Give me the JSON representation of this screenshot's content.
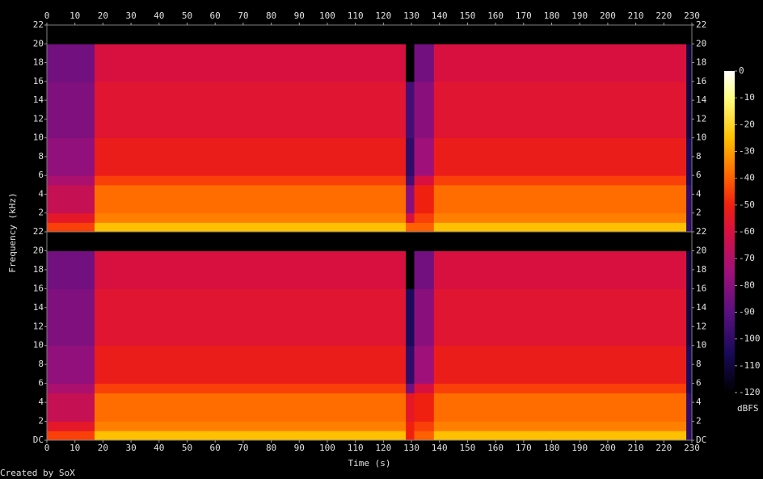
{
  "chart_data": {
    "type": "spectrogram",
    "x_label": "Time (s)",
    "y_label": "Frequency (kHz)",
    "footer": "Created by SoX",
    "xlim": [
      0,
      230
    ],
    "xticks": [
      0,
      10,
      20,
      30,
      40,
      50,
      60,
      70,
      80,
      90,
      100,
      110,
      120,
      130,
      140,
      150,
      160,
      170,
      180,
      190,
      200,
      210,
      220,
      230
    ],
    "time_bins": [
      0,
      17,
      128,
      131,
      138,
      228,
      230
    ],
    "freq_bins": [
      0,
      1,
      2,
      5,
      6,
      10,
      16,
      20,
      22
    ],
    "zlim": [
      -120,
      0
    ],
    "zticks": [
      0,
      -10,
      -20,
      -30,
      -40,
      -50,
      -60,
      -70,
      -80,
      -90,
      -100,
      -110,
      -120
    ],
    "z_label": "dBFS",
    "colorscale": [
      {
        "value": -120,
        "color": "#000000"
      },
      {
        "value": -105,
        "color": "#1a0a5a"
      },
      {
        "value": -90,
        "color": "#5a1080"
      },
      {
        "value": -75,
        "color": "#a0107a"
      },
      {
        "value": -60,
        "color": "#d81040"
      },
      {
        "value": -50,
        "color": "#f02010"
      },
      {
        "value": -40,
        "color": "#ff6000"
      },
      {
        "value": -25,
        "color": "#ffc000"
      },
      {
        "value": -10,
        "color": "#ffff80"
      },
      {
        "value": 0,
        "color": "#ffffff"
      }
    ],
    "channels": [
      {
        "ylim": [
          0,
          22
        ],
        "yticks": [
          2,
          4,
          6,
          8,
          10,
          12,
          14,
          16,
          18,
          20,
          22
        ],
        "values": [
          [
            -45,
            -25,
            -40,
            -40,
            -25,
            -100
          ],
          [
            -55,
            -35,
            -60,
            -45,
            -35,
            -100
          ],
          [
            -65,
            -38,
            -80,
            -50,
            -38,
            -100
          ],
          [
            -72,
            -45,
            -95,
            -60,
            -45,
            -105
          ],
          [
            -78,
            -52,
            -100,
            -75,
            -52,
            -105
          ],
          [
            -82,
            -57,
            -95,
            -80,
            -57,
            -110
          ],
          [
            -85,
            -60,
            -120,
            -85,
            -60,
            -110
          ],
          [
            -120,
            -120,
            -120,
            -120,
            -120,
            -120
          ]
        ]
      },
      {
        "ylim": [
          0,
          22
        ],
        "yticks": [
          {
            "value": 0,
            "label": "DC"
          },
          2,
          4,
          6,
          8,
          10,
          12,
          14,
          16,
          18,
          20,
          22
        ],
        "values": [
          [
            -45,
            -25,
            -50,
            -40,
            -25,
            -100
          ],
          [
            -55,
            -35,
            -50,
            -45,
            -35,
            -100
          ],
          [
            -65,
            -38,
            -55,
            -50,
            -38,
            -100
          ],
          [
            -72,
            -45,
            -85,
            -60,
            -45,
            -105
          ],
          [
            -78,
            -52,
            -100,
            -75,
            -52,
            -105
          ],
          [
            -82,
            -57,
            -105,
            -80,
            -57,
            -110
          ],
          [
            -85,
            -60,
            -120,
            -85,
            -60,
            -110
          ],
          [
            -120,
            -120,
            -120,
            -120,
            -120,
            -120
          ]
        ]
      }
    ]
  }
}
